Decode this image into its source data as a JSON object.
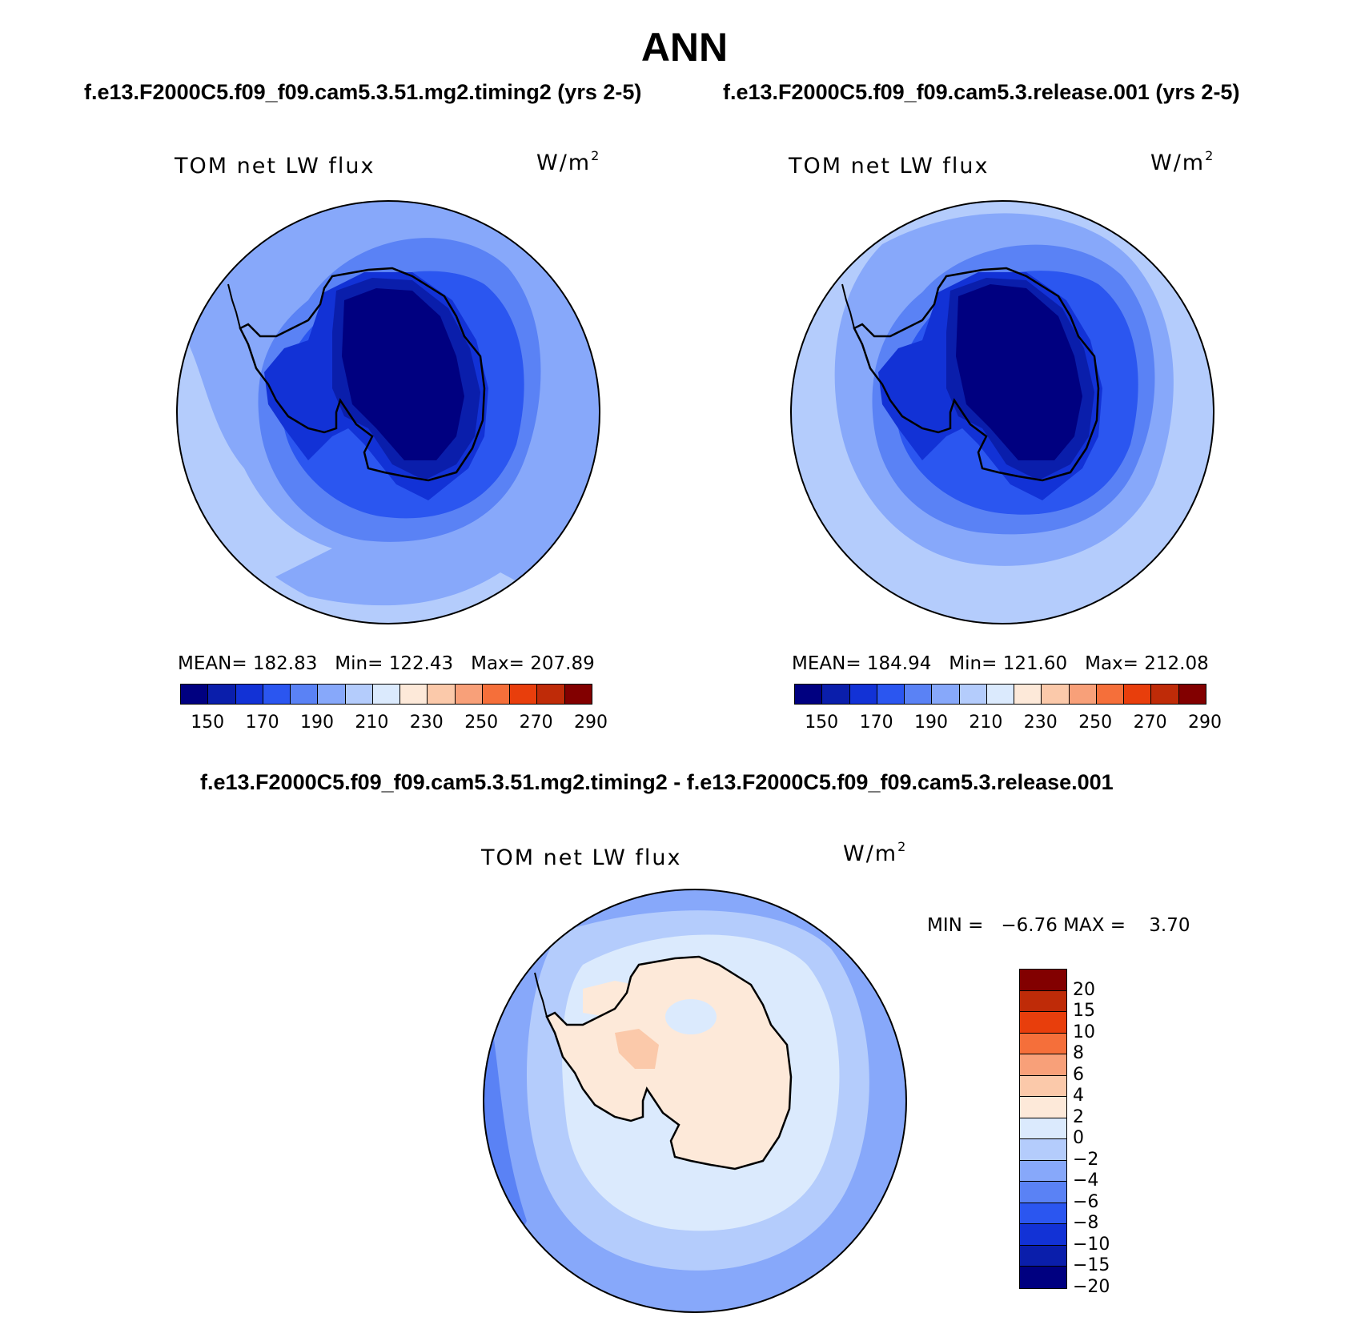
{
  "title": "ANN",
  "panels": [
    {
      "case": "f.e13.F2000C5.f09_f09.cam5.3.51.mg2.timing2 (yrs 2-5)",
      "variable": "TOM net LW flux",
      "units_base": "W/m",
      "units_exp": "2",
      "stats": "MEAN= 182.83   Min= 122.43   Max= 207.89"
    },
    {
      "case": "f.e13.F2000C5.f09_f09.cam5.3.release.001 (yrs 2-5)",
      "variable": "TOM net LW flux",
      "units_base": "W/m",
      "units_exp": "2",
      "stats": "MEAN= 184.94   Min= 121.60   Max= 212.08"
    }
  ],
  "diff": {
    "case": "f.e13.F2000C5.f09_f09.cam5.3.51.mg2.timing2 - f.e13.F2000C5.f09_f09.cam5.3.release.001",
    "variable": "TOM net LW flux",
    "units_base": "W/m",
    "units_exp": "2",
    "stats": "MIN =   −6.76 MAX =    3.70"
  },
  "colorbar": {
    "colors": [
      "#000080",
      "#0a1eab",
      "#1232d6",
      "#2b56f0",
      "#5a82f5",
      "#87a8fa",
      "#b4ccfc",
      "#dbeafd",
      "#fde9d9",
      "#fbc9aa",
      "#f8a079",
      "#f56f3a",
      "#e83e0c",
      "#bf2b08",
      "#820000"
    ],
    "tick_labels": [
      "150",
      "170",
      "190",
      "210",
      "230",
      "250",
      "270",
      "290"
    ]
  },
  "diff_colorbar": {
    "colors": [
      "#820000",
      "#bf2b08",
      "#e83e0c",
      "#f56f3a",
      "#f8a079",
      "#fbc9aa",
      "#fde9d9",
      "#dbeafd",
      "#b4ccfc",
      "#87a8fa",
      "#5a82f5",
      "#2b56f0",
      "#1232d6",
      "#0a1eab",
      "#000080"
    ],
    "labels": [
      "20",
      "15",
      "10",
      "8",
      "6",
      "4",
      "2",
      "0",
      "−2",
      "−4",
      "−6",
      "−8",
      "−10",
      "−15",
      "−20"
    ]
  },
  "map_colors": {
    "outer_ring": "#b4ccfc",
    "mid_ring": "#87a8fa",
    "inner_ring": "#5a82f5",
    "coast_ring": "#2b56f0",
    "shelf": "#1232d6",
    "edge": "#0a1eab",
    "plateau": "#000080",
    "diff_pos": "#fde9d9",
    "diff_pos2": "#fbc9aa",
    "diff_near": "#dbeafd"
  }
}
